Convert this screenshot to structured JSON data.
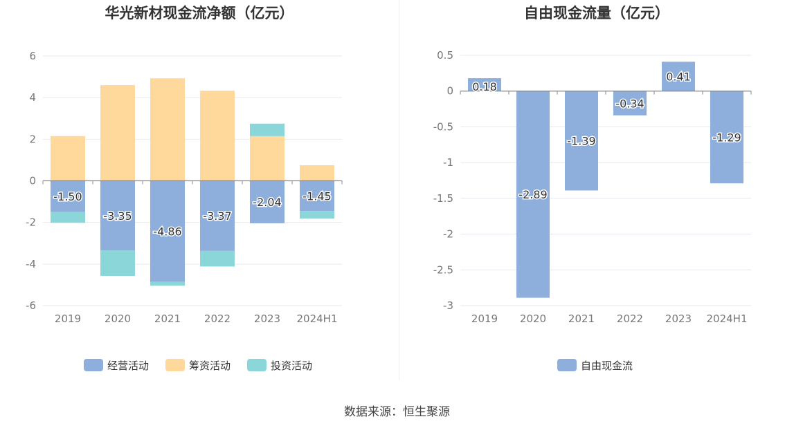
{
  "source_text": "数据来源：恒生聚源",
  "chart_data": [
    {
      "type": "bar",
      "stacked": true,
      "title": "华光新材现金流净额（亿元）",
      "categories": [
        "2019",
        "2020",
        "2021",
        "2022",
        "2023",
        "2024H1"
      ],
      "ylim": [
        -6,
        6
      ],
      "yticks": [
        6,
        4,
        2,
        0,
        -2,
        -4,
        -6
      ],
      "grid": true,
      "legend_position": "bottom",
      "series": [
        {
          "name": "经营活动",
          "color": "#8eaedc",
          "values": [
            -1.5,
            -3.35,
            -4.86,
            -3.37,
            -2.04,
            -1.45
          ],
          "labels": [
            "-1.50",
            "-3.35",
            "-4.86",
            "-3.37",
            "-2.04",
            "-1.45"
          ]
        },
        {
          "name": "筹资活动",
          "color": "#ffd89b",
          "values": [
            2.15,
            4.6,
            4.93,
            4.33,
            2.15,
            0.75
          ]
        },
        {
          "name": "投资活动",
          "color": "#8ad6d9",
          "values": [
            -0.52,
            -1.22,
            -0.18,
            -0.75,
            0.6,
            -0.37
          ]
        }
      ]
    },
    {
      "type": "bar",
      "title": "自由现金流量（亿元）",
      "categories": [
        "2019",
        "2020",
        "2021",
        "2022",
        "2023",
        "2024H1"
      ],
      "ylim": [
        -3,
        0.5
      ],
      "yticks": [
        0.5,
        0,
        -0.5,
        -1,
        -1.5,
        -2,
        -2.5,
        -3
      ],
      "ytick_labels": [
        "0.5",
        "0",
        "-0.5",
        "-1",
        "-1.5",
        "-2",
        "-2.5",
        "-3"
      ],
      "grid": true,
      "legend_position": "bottom",
      "series": [
        {
          "name": "自由现金流",
          "color": "#8eaedc",
          "values": [
            0.18,
            -2.89,
            -1.39,
            -0.34,
            0.41,
            -1.29
          ],
          "labels": [
            "0.18",
            "-2.89",
            "-1.39",
            "-0.34",
            "0.41",
            "-1.29"
          ]
        }
      ]
    }
  ]
}
